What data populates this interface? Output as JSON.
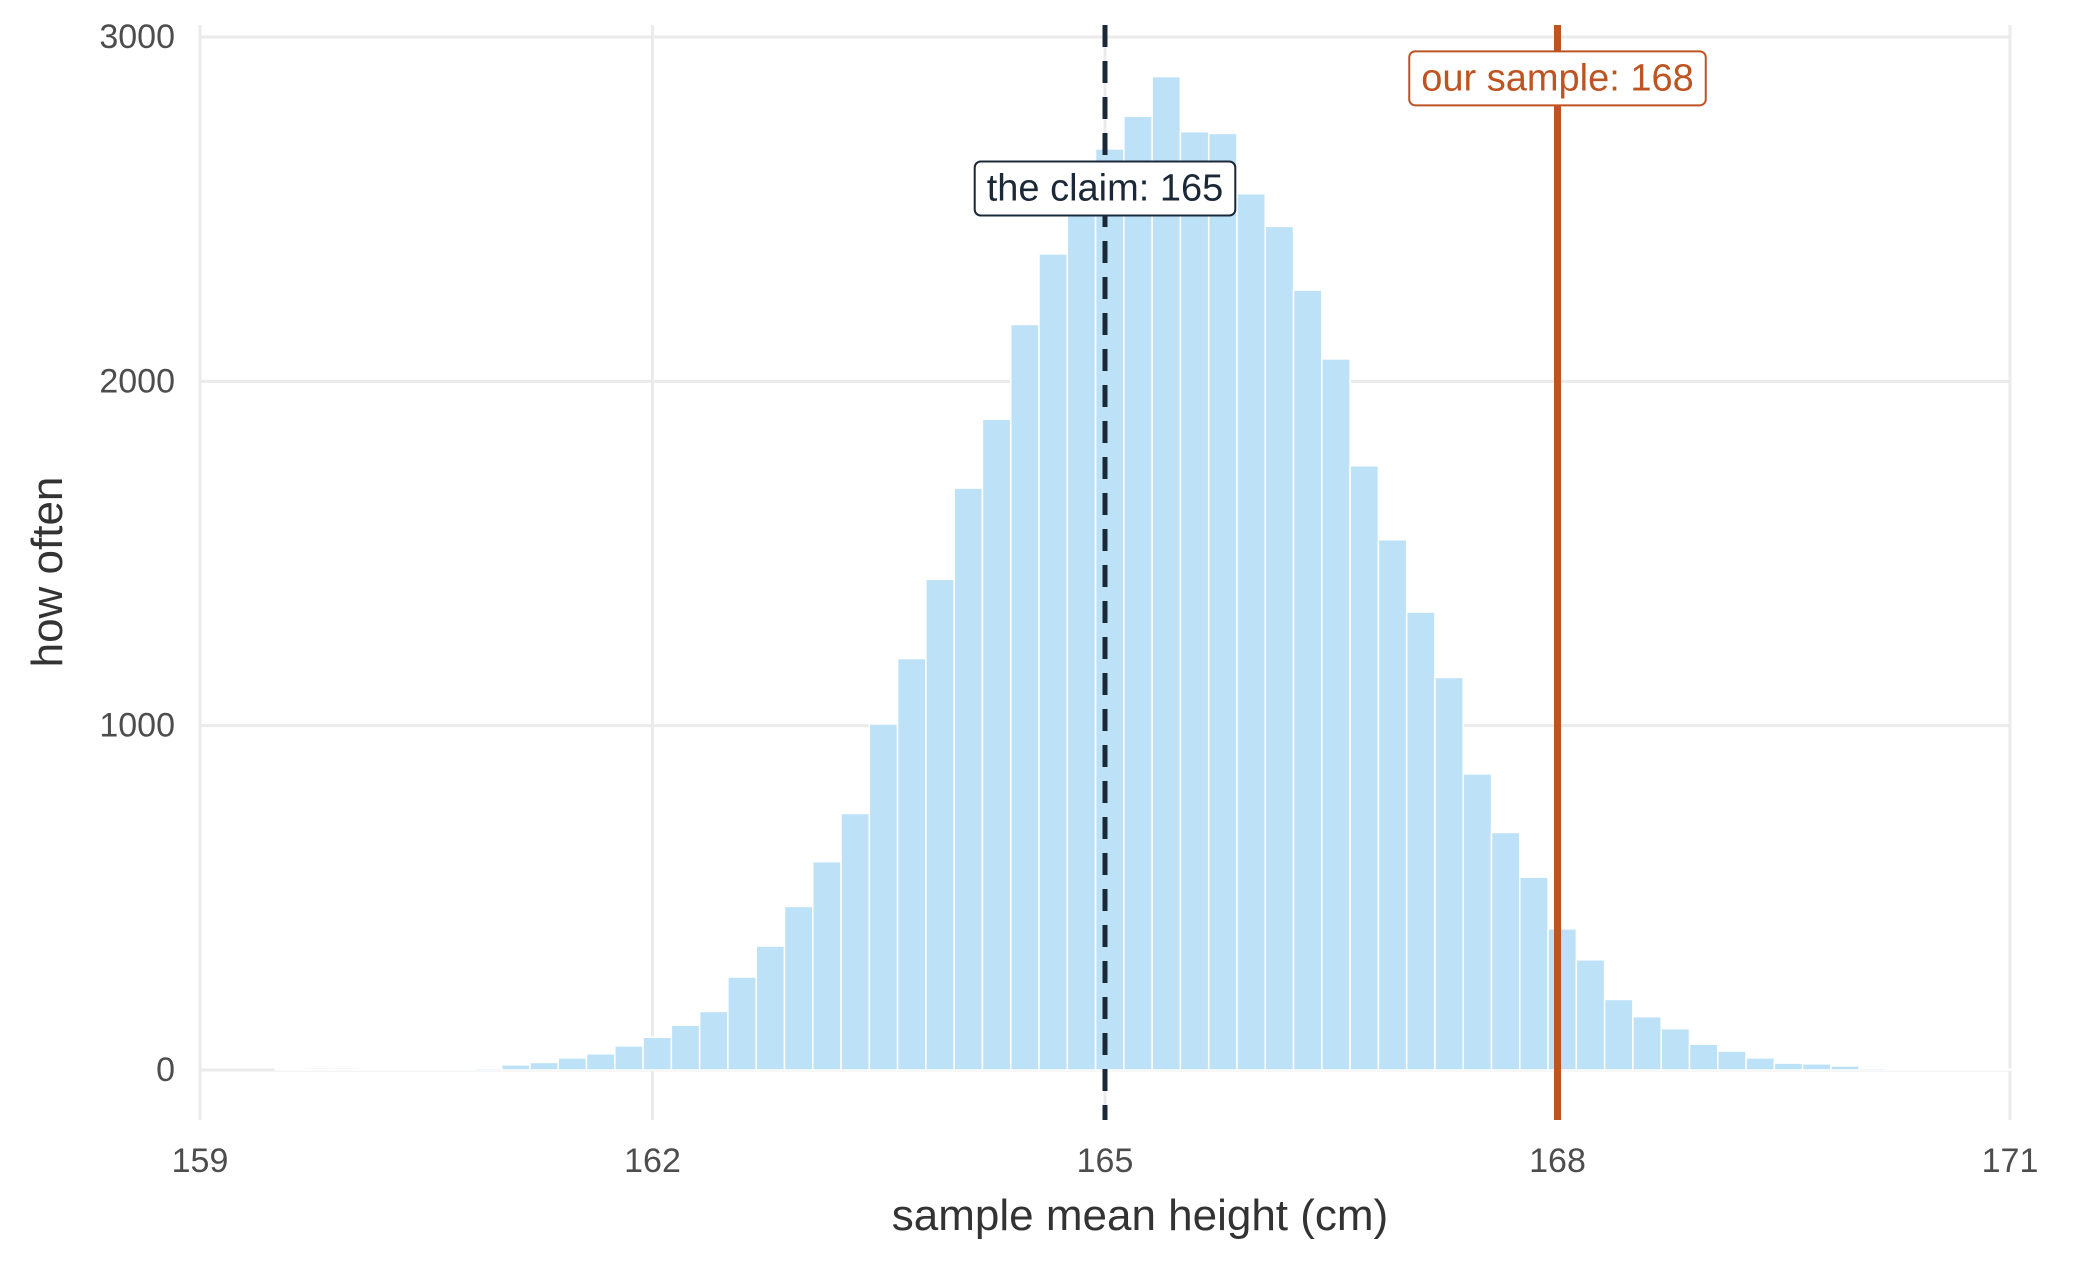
{
  "chart_data": {
    "type": "bar",
    "title": "",
    "xlabel": "sample mean height (cm)",
    "ylabel": "how often",
    "xlim": [
      159,
      171
    ],
    "ylim": [
      0,
      3000
    ],
    "grid": true,
    "x_ticks": [
      159,
      162,
      165,
      168,
      171
    ],
    "y_ticks": [
      0,
      1000,
      2000,
      3000
    ],
    "bin_width": 0.1875,
    "bins_start": 159.5,
    "bar_color": "#bde2f7",
    "values": [
      2,
      1,
      1,
      2,
      2,
      3,
      4,
      5,
      15,
      22,
      35,
      47,
      70,
      95,
      130,
      170,
      270,
      360,
      475,
      605,
      745,
      1005,
      1195,
      1425,
      1690,
      1890,
      2165,
      2370,
      2530,
      2675,
      2770,
      2885,
      2725,
      2720,
      2545,
      2450,
      2265,
      2065,
      1755,
      1540,
      1330,
      1140,
      860,
      690,
      560,
      410,
      320,
      205,
      155,
      120,
      75,
      55,
      35,
      20,
      18,
      12,
      5,
      4,
      3,
      2,
      2,
      2,
      1,
      1
    ],
    "annotations": [
      {
        "label": "the claim: 165",
        "x": 165,
        "label_y": 2560,
        "color": "#1b2838",
        "line_style": "dashed"
      },
      {
        "label": "our sample: 168",
        "x": 168,
        "label_y": 2880,
        "color": "#bd5421",
        "line_style": "solid"
      }
    ]
  }
}
